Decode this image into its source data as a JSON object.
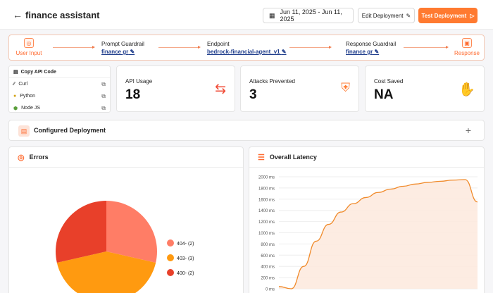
{
  "header": {
    "title": "finance assistant",
    "date_range": "Jun 11, 2025 - Jun 11, 2025",
    "edit_label": "Edit Deployment",
    "test_label": "Test Deployment"
  },
  "flow": {
    "user_input": "User Input",
    "prompt_guardrail_label": "Prompt Guardrail",
    "prompt_guardrail_value": "finance gr",
    "endpoint_label": "Endpoint",
    "endpoint_value": "bedrock-financial-agent_v1",
    "response_guardrail_label": "Response Guardrail",
    "response_guardrail_value": "finance gr",
    "response": "Response"
  },
  "api_code": {
    "title": "Copy API Code",
    "items": [
      {
        "label": "Curl"
      },
      {
        "label": "Python"
      },
      {
        "label": "Node JS"
      }
    ]
  },
  "stats": [
    {
      "label": "API Usage",
      "value": "18",
      "icon": "refresh-arrows-icon"
    },
    {
      "label": "Attacks Prevented",
      "value": "3",
      "icon": "shield-check-icon"
    },
    {
      "label": "Cost Saved",
      "value": "NA",
      "icon": "money-hand-icon"
    }
  ],
  "configured": {
    "title": "Configured Deployment"
  },
  "errors_panel": {
    "title": "Errors"
  },
  "latency_panel": {
    "title": "Overall Latency"
  },
  "chart_data": [
    {
      "type": "pie",
      "title": "Errors",
      "categories": [
        "404-",
        "403-",
        "400-"
      ],
      "values": [
        2,
        3,
        2
      ],
      "legend": [
        "404- (2)",
        "403- (3)",
        "400- (2)"
      ],
      "colors": [
        "#ff7d66",
        "#ff9a10",
        "#e8402a"
      ],
      "legend_placement": "right"
    },
    {
      "type": "area",
      "title": "Overall Latency",
      "ylabel": "",
      "xlabel": "",
      "ylim": [
        0,
        2000
      ],
      "yticks": [
        "0 ms",
        "200 ms",
        "400 ms",
        "600 ms",
        "800 ms",
        "1000 ms",
        "1200 ms",
        "1400 ms",
        "1600 ms",
        "1800 ms",
        "2000 ms"
      ],
      "x": [
        0,
        1,
        2,
        3,
        4,
        5,
        6,
        7,
        8,
        9,
        10,
        11,
        12,
        13,
        14,
        15,
        16
      ],
      "values": [
        40,
        0,
        400,
        850,
        1150,
        1370,
        1520,
        1630,
        1720,
        1780,
        1830,
        1870,
        1900,
        1920,
        1940,
        1950,
        1550
      ],
      "color": "#f08a2a",
      "grid": true
    }
  ]
}
